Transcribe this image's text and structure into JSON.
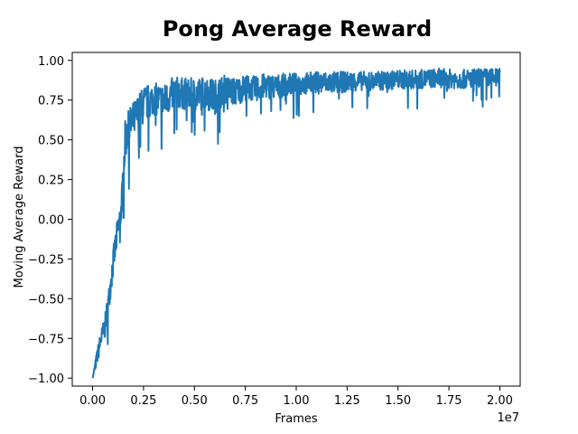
{
  "chart_data": {
    "type": "line",
    "title": "Pong Average Reward",
    "xlabel": "Frames",
    "ylabel": "Moving Average Reward",
    "x_offset_text": "1e7",
    "xlim": [
      -0.1,
      2.1
    ],
    "ylim": [
      -1.05,
      1.05
    ],
    "x_ticks": [
      0.0,
      0.25,
      0.5,
      0.75,
      1.0,
      1.25,
      1.5,
      1.75,
      2.0
    ],
    "x_tick_labels": [
      "0.00",
      "0.25",
      "0.50",
      "0.75",
      "1.00",
      "1.25",
      "1.50",
      "1.75",
      "2.00"
    ],
    "y_ticks": [
      -1.0,
      -0.75,
      -0.5,
      -0.25,
      0.0,
      0.25,
      0.5,
      0.75,
      1.0
    ],
    "y_tick_labels": [
      "−1.00",
      "−0.75",
      "−0.50",
      "−0.25",
      "0.00",
      "0.25",
      "0.50",
      "0.75",
      "1.00"
    ],
    "grid": false,
    "series": [
      {
        "color": "#1f77b4",
        "x": [
          0.0,
          0.02,
          0.04,
          0.06,
          0.08,
          0.1,
          0.12,
          0.14,
          0.16,
          0.18,
          0.2,
          0.25,
          0.3,
          0.35,
          0.4,
          0.45,
          0.5,
          0.55,
          0.6,
          0.65,
          0.7,
          0.75,
          0.8,
          0.85,
          0.9,
          0.95,
          1.0,
          1.1,
          1.2,
          1.3,
          1.4,
          1.5,
          1.6,
          1.7,
          1.8,
          1.9,
          2.0
        ],
        "y": [
          -1.0,
          -0.88,
          -0.76,
          -0.68,
          -0.5,
          -0.28,
          -0.1,
          0.05,
          0.5,
          0.58,
          0.62,
          0.72,
          0.76,
          0.74,
          0.8,
          0.79,
          0.78,
          0.8,
          0.77,
          0.82,
          0.8,
          0.83,
          0.82,
          0.84,
          0.83,
          0.85,
          0.85,
          0.86,
          0.86,
          0.87,
          0.87,
          0.88,
          0.88,
          0.89,
          0.88,
          0.89,
          0.89
        ],
        "noise_band": [
          0.0,
          0.05,
          0.06,
          0.07,
          0.08,
          0.09,
          0.09,
          0.09,
          0.12,
          0.12,
          0.12,
          0.12,
          0.1,
          0.11,
          0.1,
          0.1,
          0.11,
          0.1,
          0.11,
          0.09,
          0.09,
          0.08,
          0.08,
          0.08,
          0.08,
          0.07,
          0.07,
          0.07,
          0.07,
          0.06,
          0.06,
          0.06,
          0.06,
          0.06,
          0.06,
          0.06,
          0.06
        ]
      }
    ]
  }
}
